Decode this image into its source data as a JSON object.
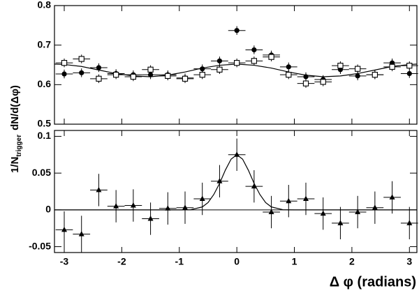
{
  "chart_data": [
    {
      "type": "errorbar",
      "ylabel": [
        "1/N",
        "trigger",
        "dN/d(Δφ)"
      ],
      "xlim": [
        -3.17,
        3.13
      ],
      "xticks": [
        -3,
        -2,
        -1,
        0,
        1,
        2,
        3
      ],
      "xtick_labels": false,
      "ylim": [
        0.5,
        0.8
      ],
      "yticks": [
        0.5,
        0.6,
        0.7,
        0.8
      ],
      "x": [
        -3.0,
        -2.7,
        -2.4,
        -2.1,
        -1.8,
        -1.5,
        -1.2,
        -0.9,
        -0.6,
        -0.3,
        0,
        0.3,
        0.6,
        0.9,
        1.2,
        1.5,
        1.8,
        2.1,
        2.4,
        2.7,
        3.0
      ],
      "xerr": 0.15,
      "series": [
        {
          "marker": "circle",
          "color": "#000000",
          "values": [
            0.627,
            0.63,
            0.643,
            0.628,
            0.625,
            0.625,
            0.625,
            0.617,
            0.64,
            0.66,
            0.737,
            0.688,
            0.675,
            0.645,
            0.62,
            0.613,
            0.638,
            0.622,
            0.625,
            0.655,
            0.628
          ],
          "errors": [
            0.011,
            0.011,
            0.011,
            0.011,
            0.011,
            0.011,
            0.011,
            0.011,
            0.011,
            0.011,
            0.011,
            0.011,
            0.011,
            0.011,
            0.011,
            0.011,
            0.011,
            0.011,
            0.011,
            0.011,
            0.011
          ]
        },
        {
          "marker": "square",
          "color": "#000000",
          "values": [
            0.655,
            0.665,
            0.615,
            0.625,
            0.62,
            0.638,
            0.622,
            0.615,
            0.625,
            0.638,
            0.655,
            0.66,
            0.67,
            0.625,
            0.603,
            0.607,
            0.648,
            0.64,
            0.625,
            0.645,
            0.648
          ],
          "errors": [
            0.011,
            0.011,
            0.011,
            0.011,
            0.011,
            0.011,
            0.011,
            0.011,
            0.011,
            0.011,
            0.011,
            0.011,
            0.011,
            0.011,
            0.011,
            0.011,
            0.011,
            0.011,
            0.011,
            0.011,
            0.011
          ]
        }
      ],
      "fit": {
        "x": [
          -3.17,
          -3.0,
          -2.7,
          -2.4,
          -2.1,
          -1.8,
          -1.5,
          -1.2,
          -0.9,
          -0.6,
          -0.3,
          0,
          0.3,
          0.6,
          0.9,
          1.2,
          1.5,
          1.8,
          2.1,
          2.4,
          2.7,
          3.0,
          3.13
        ],
        "values": [
          0.652,
          0.651,
          0.646,
          0.637,
          0.628,
          0.622,
          0.62,
          0.624,
          0.632,
          0.642,
          0.649,
          0.652,
          0.649,
          0.642,
          0.632,
          0.624,
          0.62,
          0.622,
          0.628,
          0.637,
          0.646,
          0.651,
          0.652
        ]
      }
    },
    {
      "type": "errorbar",
      "xlabel": "Δ φ (radians)",
      "xlim": [
        -3.17,
        3.13
      ],
      "xticks": [
        -3,
        -2,
        -1,
        0,
        1,
        2,
        3
      ],
      "xtick_labels": true,
      "ylim": [
        -0.058,
        0.108
      ],
      "yticks": [
        -0.05,
        0,
        0.05,
        0.1
      ],
      "reference_line": 0,
      "x": [
        -3.0,
        -2.7,
        -2.4,
        -2.1,
        -1.8,
        -1.5,
        -1.2,
        -0.9,
        -0.6,
        -0.3,
        0,
        0.3,
        0.6,
        0.9,
        1.2,
        1.5,
        1.8,
        2.1,
        2.4,
        2.7,
        3.0
      ],
      "xerr": 0.15,
      "series": [
        {
          "marker": "triangle",
          "color": "#000000",
          "values": [
            -0.027,
            -0.033,
            0.027,
            0.005,
            0.006,
            -0.012,
            0.002,
            0.003,
            0.015,
            0.039,
            0.075,
            0.032,
            -0.003,
            0.012,
            0.015,
            -0.005,
            -0.018,
            -0.003,
            0.003,
            0.017,
            -0.018
          ],
          "errors": [
            0.025,
            0.025,
            0.022,
            0.022,
            0.022,
            0.022,
            0.022,
            0.022,
            0.022,
            0.022,
            0.022,
            0.022,
            0.022,
            0.022,
            0.022,
            0.022,
            0.022,
            0.022,
            0.022,
            0.022,
            0.022
          ]
        }
      ],
      "fit": {
        "x": [
          -3.17,
          -1.0,
          -0.8,
          -0.6,
          -0.5,
          -0.4,
          -0.3,
          -0.2,
          -0.1,
          0,
          0.1,
          0.2,
          0.3,
          0.4,
          0.5,
          0.6,
          0.8,
          1.0,
          3.13
        ],
        "values": [
          0,
          0,
          0.0003,
          0.004,
          0.01,
          0.021,
          0.036,
          0.054,
          0.069,
          0.075,
          0.069,
          0.054,
          0.036,
          0.021,
          0.01,
          0.004,
          0.0003,
          0,
          0
        ]
      }
    }
  ]
}
